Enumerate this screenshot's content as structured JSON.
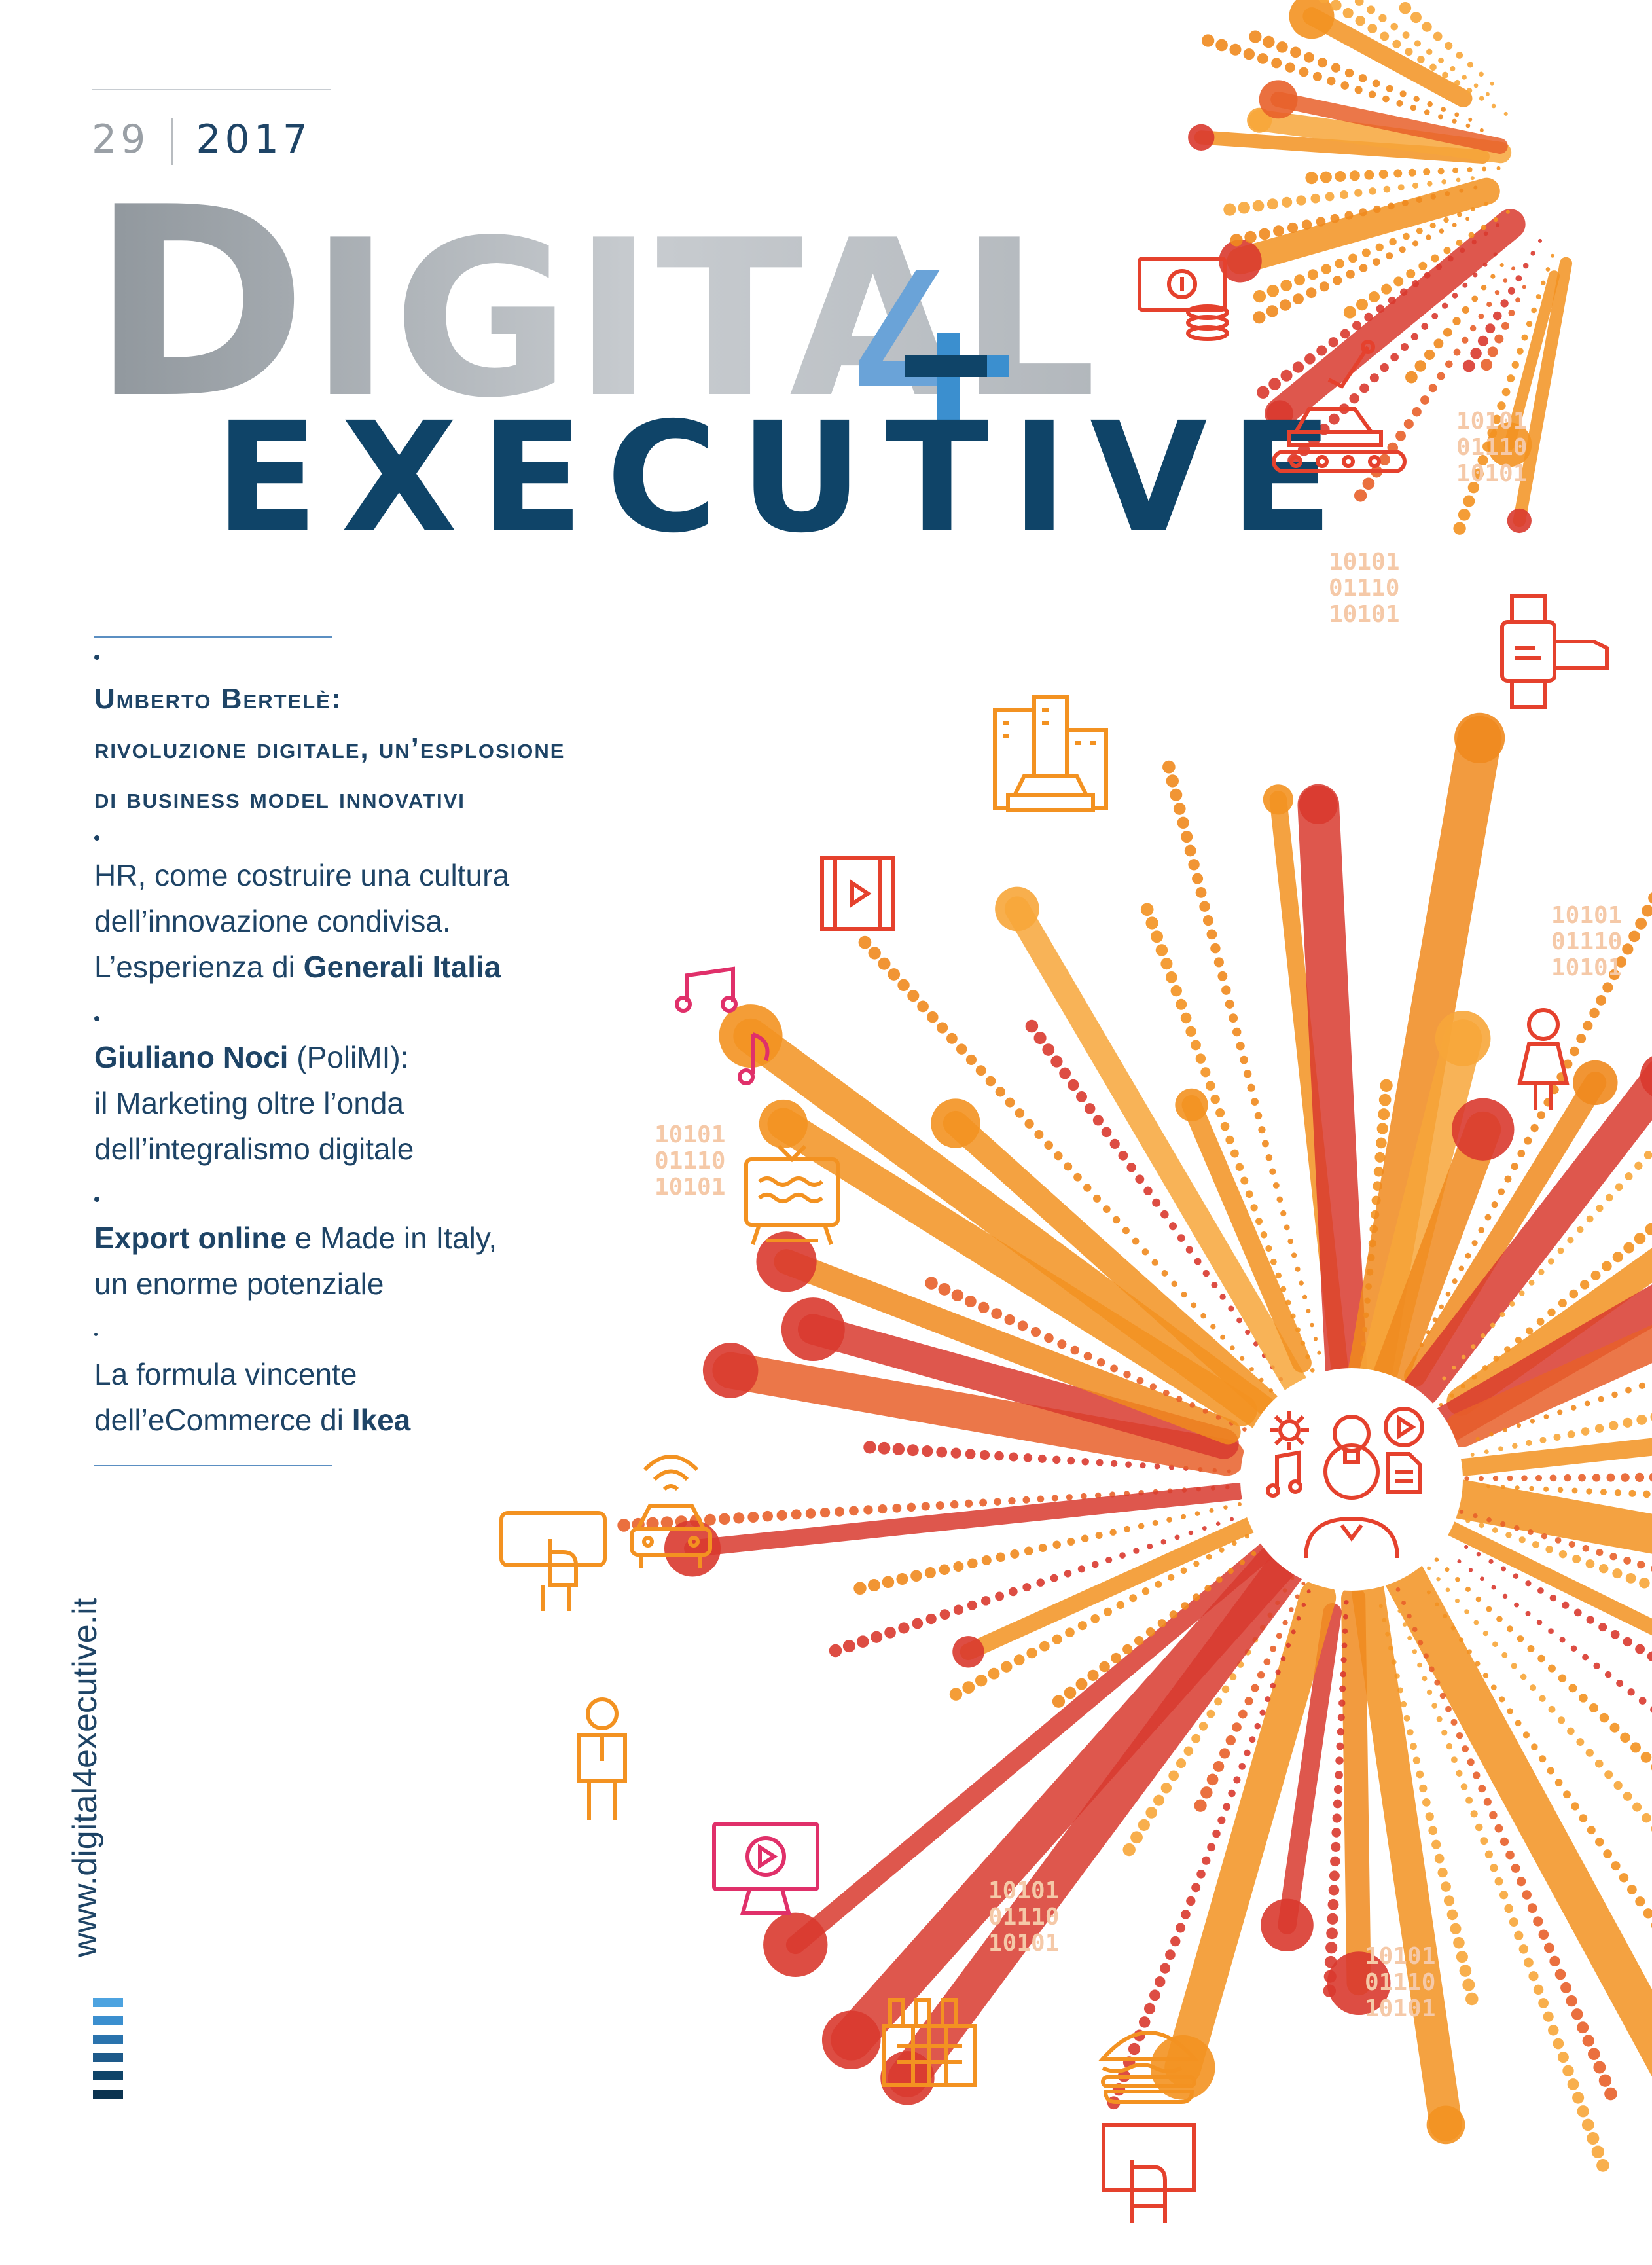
{
  "cover": {
    "issue_number": "29",
    "issue_year": "2017",
    "masthead_top_initial": "D",
    "masthead_top_rest": "IGITAL",
    "masthead_bottom": "EXECUTIVE",
    "url": "www.digital4executive.it"
  },
  "toc": [
    {
      "parts": [
        {
          "t": "Umberto Bertelè:"
        }
      ]
    },
    {
      "parts": [
        {
          "t": "rivoluzione digitale, un’esplosione"
        }
      ]
    },
    {
      "parts": [
        {
          "t": "di business model innovativi"
        }
      ]
    },
    {
      "line1": "HR, come costruire una cultura",
      "line2": "dell’innovazione condivisa.",
      "line3_pre": "L’esperienza di ",
      "line3_bold": "Generali Italia"
    },
    {
      "line1_bold": "Giuliano Noci",
      "line1_rest": " (PoliMI):",
      "line2": "il Marketing oltre l’onda",
      "line3": "dell’integralismo digitale"
    },
    {
      "line1_bold": "Export online",
      "line1_rest": " e Made in Italy,",
      "line2": "un enorme potenziale"
    },
    {
      "line1": "La formula vincente",
      "line2_pre": "dell’eCommerce di ",
      "line2_bold": "Ikea"
    }
  ],
  "binary_text": {
    "a": "10101",
    "b": "01110",
    "c": "10101"
  },
  "colors": {
    "navy": "#0f4468",
    "grey": "#aeb3b8",
    "blue_accent": "#3b8fcf",
    "orange": "#f39221",
    "deep_orange": "#e8602a",
    "red": "#d93a2f",
    "icon_red": "#e5412d",
    "icon_pink": "#e0306a"
  },
  "icons": [
    "money-icon",
    "car-factory-icon",
    "smartwatch-icon",
    "city-taxi-icon",
    "film-video-icon",
    "music-note-icon",
    "woman-avatar-icon",
    "retro-tv-icon",
    "wifi-car-icon",
    "tablet-touch-icon",
    "businessman-icon",
    "play-monitor-icon",
    "factory-icon",
    "burger-icon",
    "touch-screen-icon",
    "gear-icon",
    "lightbulb-head-icon",
    "play-icon",
    "document-icon"
  ]
}
